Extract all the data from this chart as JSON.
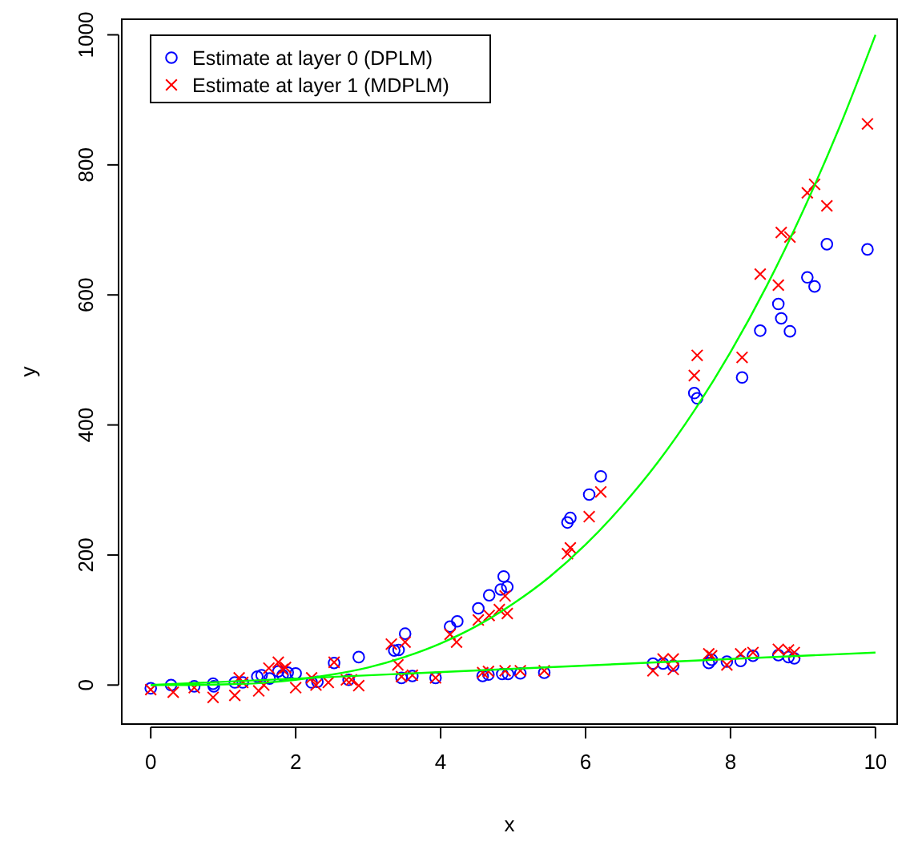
{
  "chart_data": {
    "type": "scatter",
    "xlabel": "x",
    "ylabel": "y",
    "xlim": [
      -0.4,
      10.3
    ],
    "ylim": [
      -60,
      1024
    ],
    "xticks": [
      0,
      2,
      4,
      6,
      8,
      10
    ],
    "yticks": [
      0,
      200,
      400,
      600,
      800,
      1000
    ],
    "grid": false,
    "legend": "top left",
    "series": [
      {
        "name": "Estimate at layer 0 (DPLM)",
        "marker": "circle",
        "color": "#0000ff",
        "x": [
          0,
          0.28,
          0.6,
          0.86,
          0.87,
          1.16,
          1.27,
          1.47,
          1.53,
          1.64,
          1.76,
          1.82,
          1.89,
          2.0,
          2.22,
          2.3,
          2.53,
          2.73,
          2.87,
          3.36,
          3.42,
          3.51,
          3.46,
          3.61,
          3.93,
          4.13,
          4.23,
          4.52,
          4.58,
          4.67,
          4.66,
          4.83,
          4.87,
          4.92,
          4.85,
          4.93,
          5.1,
          5.43,
          5.75,
          5.79,
          6.05,
          6.21,
          6.93,
          7.07,
          7.21,
          7.5,
          7.54,
          7.7,
          7.74,
          7.95,
          8.14,
          8.16,
          8.31,
          8.41,
          8.66,
          8.66,
          8.7,
          8.8,
          8.82,
          8.88,
          9.06,
          9.16,
          9.33,
          9.89
        ],
        "values": [
          -5,
          0,
          -2,
          2,
          -2,
          4,
          4,
          13,
          15,
          10,
          21,
          15,
          19,
          18,
          4,
          5,
          34,
          8,
          43,
          53,
          54,
          79,
          11,
          14,
          11,
          90,
          98,
          118,
          14,
          138,
          16,
          147,
          167,
          151,
          17,
          17,
          18,
          19,
          250,
          257,
          293,
          321,
          33,
          33,
          30,
          449,
          441,
          34,
          39,
          36,
          37,
          473,
          45,
          545,
          46,
          586,
          564,
          43,
          544,
          41,
          627,
          613,
          678,
          670
        ]
      },
      {
        "name": "Estimate at layer 1 (MDPLM)",
        "marker": "cross",
        "color": "#ff0000",
        "x": [
          0,
          0.31,
          0.6,
          0.86,
          1.16,
          1.22,
          1.27,
          1.49,
          1.56,
          1.63,
          1.76,
          1.82,
          1.86,
          2.0,
          2.22,
          2.28,
          2.45,
          2.53,
          2.7,
          2.77,
          2.87,
          3.32,
          3.41,
          3.51,
          3.46,
          3.61,
          3.93,
          4.13,
          4.22,
          4.52,
          4.58,
          4.67,
          4.66,
          4.81,
          4.89,
          4.92,
          4.89,
          5.1,
          5.43,
          5.75,
          5.79,
          6.05,
          6.21,
          6.93,
          7.07,
          7.21,
          7.21,
          7.5,
          7.54,
          7.7,
          7.74,
          7.95,
          8.14,
          8.16,
          8.31,
          8.41,
          8.66,
          8.66,
          8.7,
          8.8,
          8.82,
          8.88,
          9.06,
          9.16,
          9.33,
          9.89
        ],
        "values": [
          -7,
          -11,
          -4,
          -19,
          -16,
          11,
          4,
          -9,
          0,
          26,
          35,
          24,
          27,
          -4,
          11,
          0,
          4,
          35,
          8,
          8,
          -1,
          63,
          31,
          66,
          13,
          15,
          11,
          78,
          66,
          100,
          19,
          107,
          21,
          116,
          137,
          110,
          22,
          22,
          22,
          202,
          211,
          259,
          297,
          22,
          40,
          24,
          40,
          476,
          507,
          48,
          45,
          31,
          48,
          504,
          50,
          632,
          55,
          615,
          696,
          54,
          689,
          50,
          757,
          770,
          737,
          863
        ]
      },
      {
        "type": "line",
        "marker": "none",
        "color": "#00ff00",
        "x": [
          0,
          0.5,
          1,
          1.5,
          2,
          2.5,
          3,
          3.5,
          4,
          4.5,
          5,
          5.5,
          6,
          6.5,
          7,
          7.5,
          8,
          8.5,
          9,
          9.5,
          10
        ],
        "values": [
          0,
          0,
          1,
          3,
          8,
          16,
          27,
          43,
          64,
          91,
          125,
          166,
          216,
          275,
          343,
          422,
          512,
          614,
          729,
          857,
          1000
        ]
      },
      {
        "type": "line",
        "marker": "none",
        "color": "#00ff00",
        "x": [
          0,
          10
        ],
        "values": [
          0,
          50
        ]
      }
    ]
  }
}
